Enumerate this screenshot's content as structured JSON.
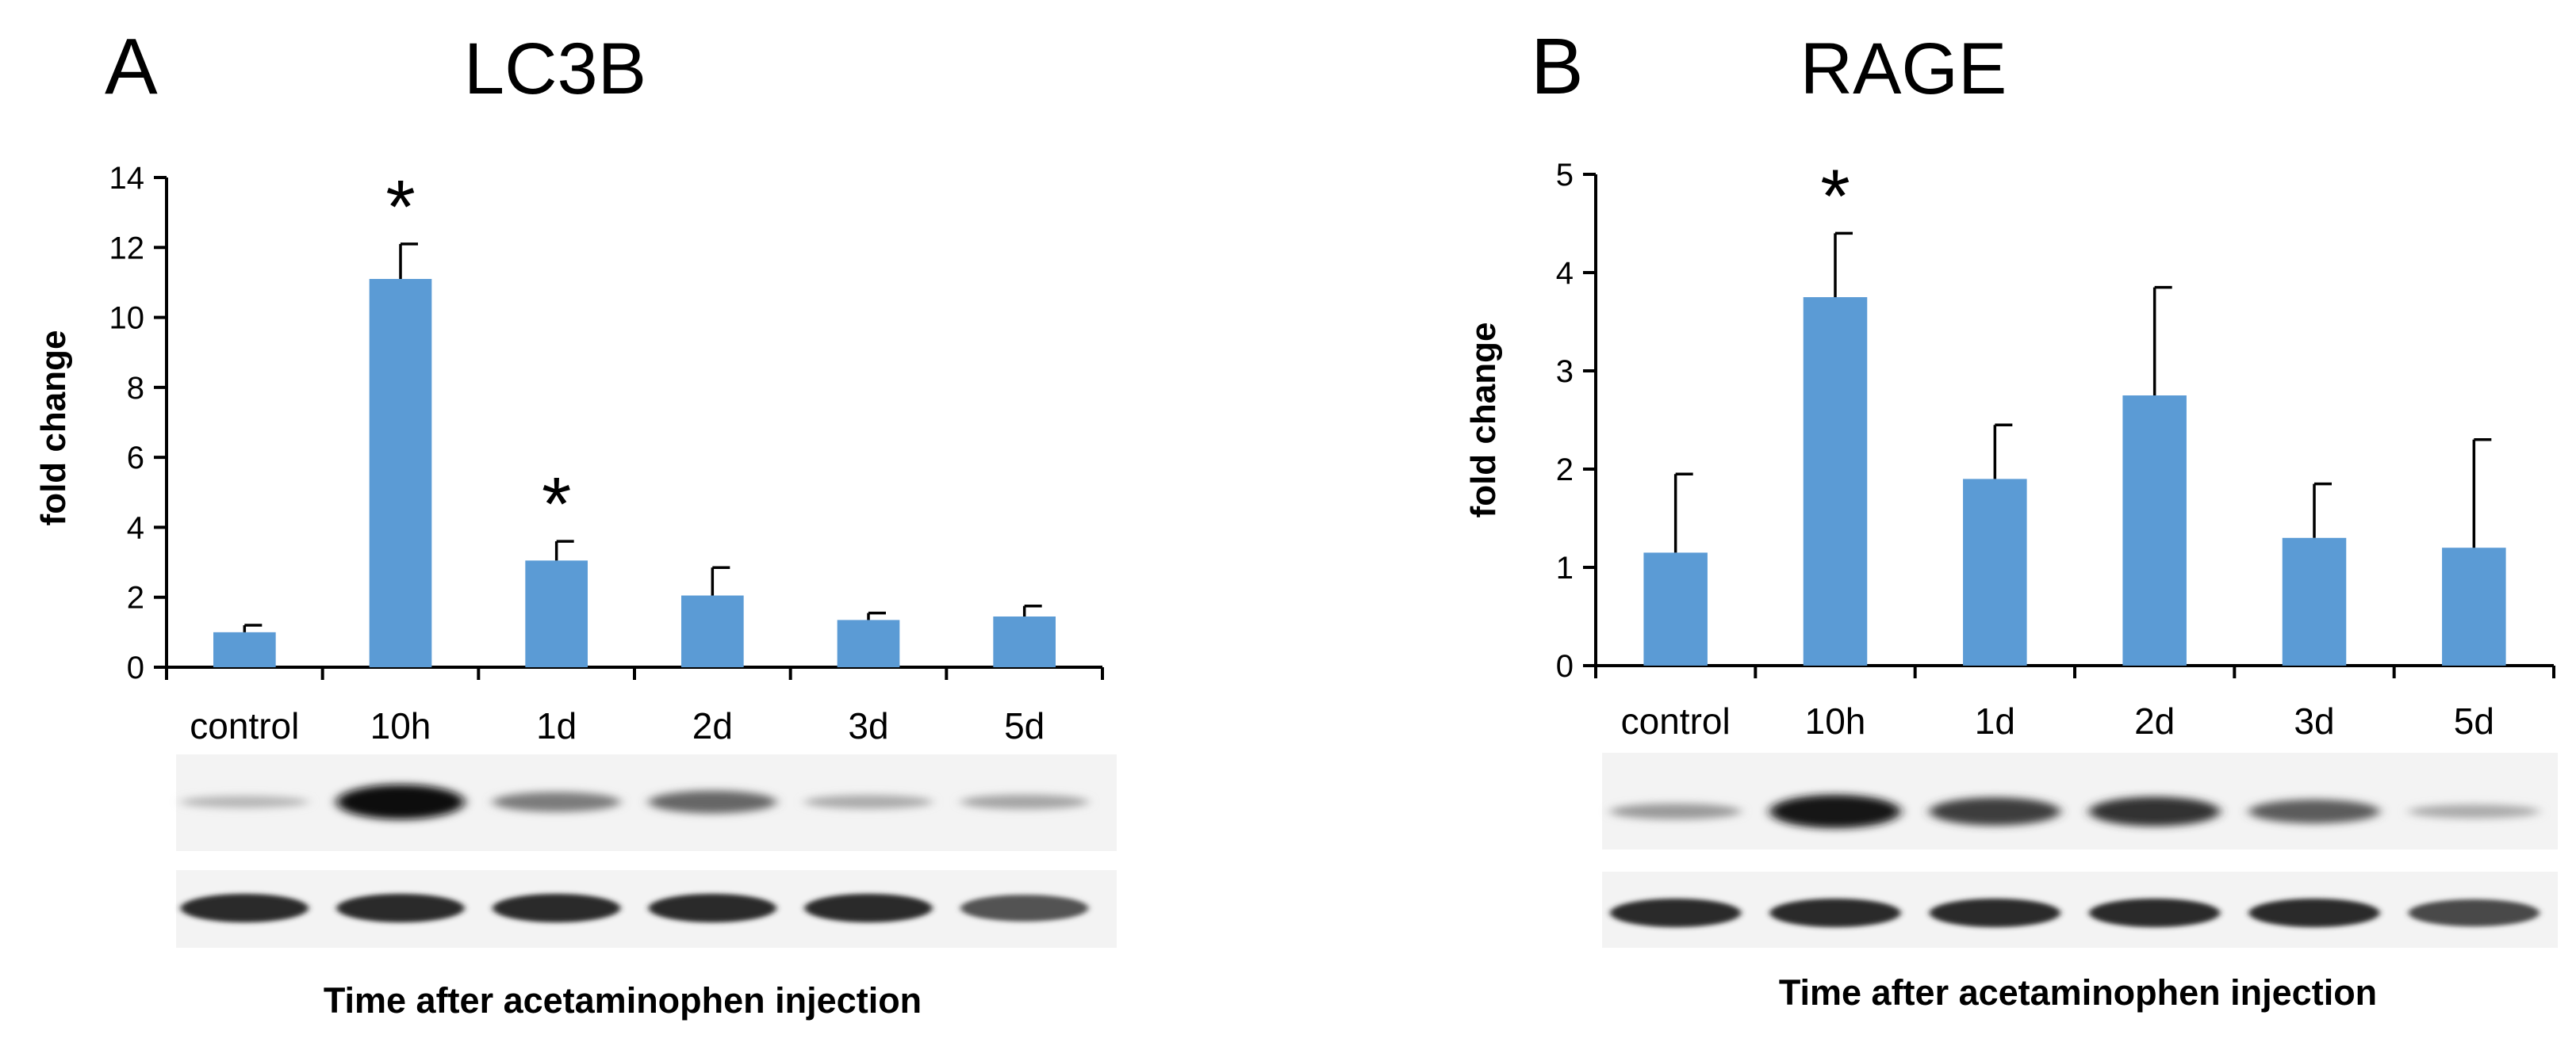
{
  "chart_data": [
    {
      "panel": "A",
      "type": "bar",
      "title": "LC3B",
      "ylabel": "fold change",
      "xlabel": "Time after acetaminophen injection",
      "ylim": [
        0,
        14
      ],
      "yticks": [
        0,
        2,
        4,
        6,
        8,
        10,
        12,
        14
      ],
      "categories": [
        "control",
        "10h",
        "1d",
        "2d",
        "3d",
        "5d"
      ],
      "values": [
        1.0,
        11.1,
        3.05,
        2.05,
        1.35,
        1.45
      ],
      "errors": [
        0.2,
        1.0,
        0.55,
        0.8,
        0.2,
        0.3
      ],
      "significant": [
        "",
        "*",
        "*",
        "",
        "",
        ""
      ],
      "blot": {
        "top_band": [
          0.16,
          1.0,
          0.45,
          0.55,
          0.22,
          0.25
        ],
        "loading_band": [
          0.85,
          0.85,
          0.85,
          0.85,
          0.85,
          0.65
        ]
      },
      "bar_color": "#5b9bd5"
    },
    {
      "panel": "B",
      "type": "bar",
      "title": "RAGE",
      "ylabel": "fold change",
      "xlabel": "Time after acetaminophen injection",
      "ylim": [
        0,
        5
      ],
      "yticks": [
        0,
        1,
        2,
        3,
        4,
        5
      ],
      "categories": [
        "control",
        "10h",
        "1d",
        "2d",
        "3d",
        "5d"
      ],
      "values": [
        1.15,
        3.75,
        1.9,
        2.75,
        1.3,
        1.2
      ],
      "errors": [
        0.8,
        0.65,
        0.55,
        1.1,
        0.55,
        1.1
      ],
      "significant": [
        "",
        "*",
        "",
        "",
        "",
        ""
      ],
      "blot": {
        "top_band": [
          0.3,
          0.95,
          0.75,
          0.8,
          0.6,
          0.22
        ],
        "loading_band": [
          0.85,
          0.85,
          0.85,
          0.85,
          0.85,
          0.7
        ]
      },
      "bar_color": "#5b9bd5"
    }
  ]
}
